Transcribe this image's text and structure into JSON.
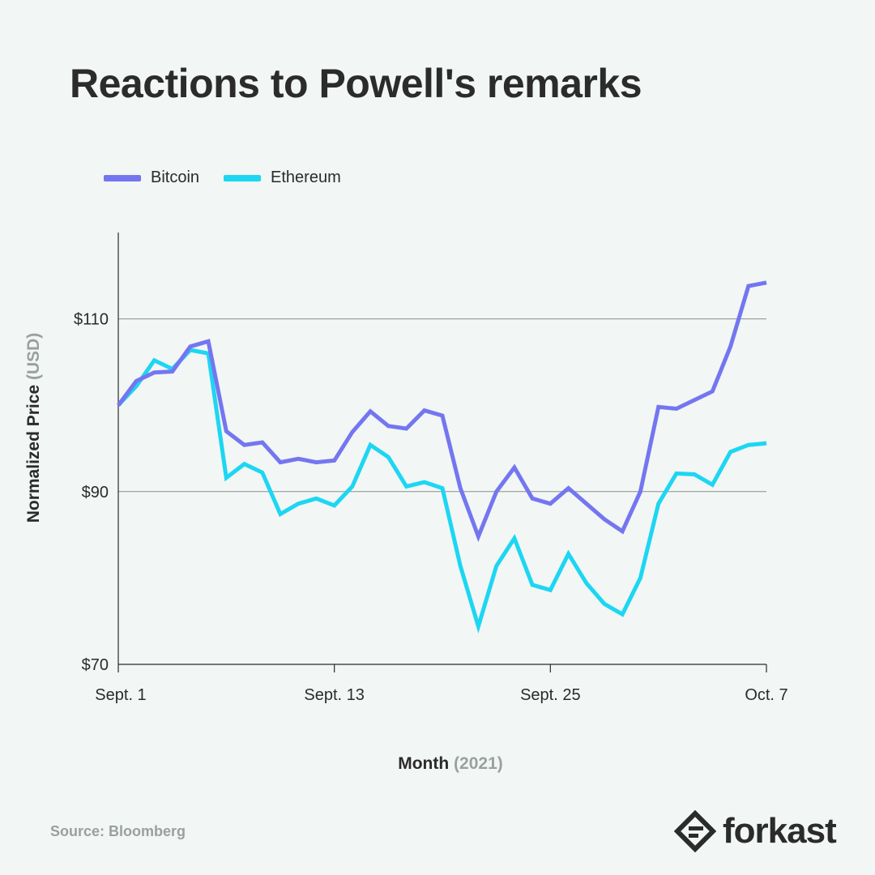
{
  "title": "Reactions to Powell's remarks",
  "source": "Source: Bloomberg",
  "brand": {
    "name": "forkast",
    "logo_icon": "forkast-logo-icon"
  },
  "colors": {
    "bitcoin": "#7476f0",
    "ethereum": "#1dd6f2",
    "grid": "#8a8f8f",
    "axis": "#2b2b2b",
    "muted": "#9aa0a0"
  },
  "legend": [
    {
      "label": "Bitcoin",
      "color": "#7476f0"
    },
    {
      "label": "Ethereum",
      "color": "#1dd6f2"
    }
  ],
  "chart_data": {
    "type": "line",
    "title": "Reactions to Powell's remarks",
    "xlabel_main": "Month",
    "xlabel_sub": "(2021)",
    "ylabel_main": "Normalized Price",
    "ylabel_sub": "(USD)",
    "ylim": [
      70,
      120
    ],
    "yticks": [
      {
        "value": 70,
        "label": "$70"
      },
      {
        "value": 90,
        "label": "$90"
      },
      {
        "value": 110,
        "label": "$110"
      }
    ],
    "xlim": [
      0,
      36
    ],
    "xticks": [
      {
        "index": 0,
        "label": "Sept. 1"
      },
      {
        "index": 12,
        "label": "Sept. 13"
      },
      {
        "index": 24,
        "label": "Sept. 25"
      },
      {
        "index": 36,
        "label": "Oct. 7"
      }
    ],
    "grid": "horizontal at $90 and $110",
    "legend_position": "top-left",
    "series": [
      {
        "name": "Bitcoin",
        "color": "#7476f0",
        "values": [
          100,
          102.8,
          103.8,
          103.9,
          106.8,
          107.4,
          97,
          95.4,
          95.7,
          93.4,
          93.8,
          93.4,
          93.6,
          96.9,
          99.3,
          97.6,
          97.3,
          99.4,
          98.8,
          90.4,
          84.8,
          90,
          92.8,
          89.2,
          88.6,
          90.4,
          88.6,
          86.8,
          85.4,
          90,
          99.8,
          99.6,
          100.6,
          101.6,
          106.8,
          113.8,
          114.2
        ]
      },
      {
        "name": "Ethereum",
        "color": "#1dd6f2",
        "values": [
          100,
          102.2,
          105.2,
          104.2,
          106.4,
          106,
          91.6,
          93.2,
          92.2,
          87.4,
          88.6,
          89.2,
          88.4,
          90.6,
          95.4,
          94,
          90.6,
          91.1,
          90.4,
          81.4,
          74.4,
          81.4,
          84.6,
          79.2,
          78.6,
          82.8,
          79.4,
          77,
          75.8,
          80,
          88.6,
          92.1,
          92,
          90.8,
          94.6,
          95.4,
          95.6
        ]
      }
    ]
  }
}
